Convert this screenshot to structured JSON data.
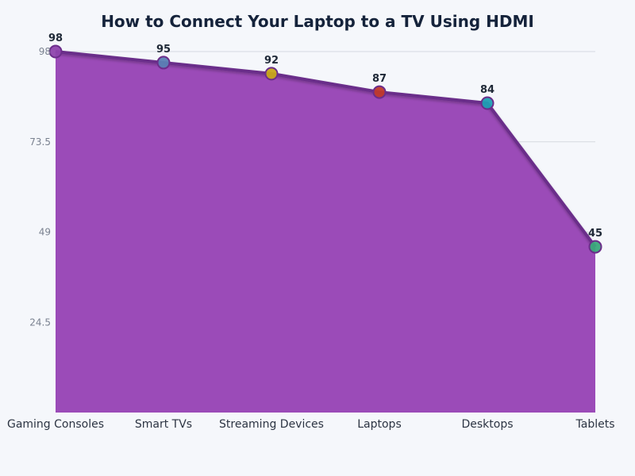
{
  "chart_data": {
    "type": "area",
    "title": "How to Connect Your Laptop to a TV Using HDMI",
    "categories": [
      "Gaming Consoles",
      "Smart TVs",
      "Streaming Devices",
      "Laptops",
      "Desktops",
      "Tablets"
    ],
    "values": [
      98,
      95,
      92,
      87,
      84,
      45
    ],
    "ylim": [
      0,
      98
    ],
    "yticks": [
      24.5,
      49,
      73.5,
      98
    ],
    "grid": true,
    "area_color": "#9b4bb8",
    "line_color": "#6b2d8a",
    "point_colors": [
      "#8e44ad",
      "#5b7fb5",
      "#c8a619",
      "#c0392b",
      "#1e9fb3",
      "#3aa97b"
    ]
  }
}
